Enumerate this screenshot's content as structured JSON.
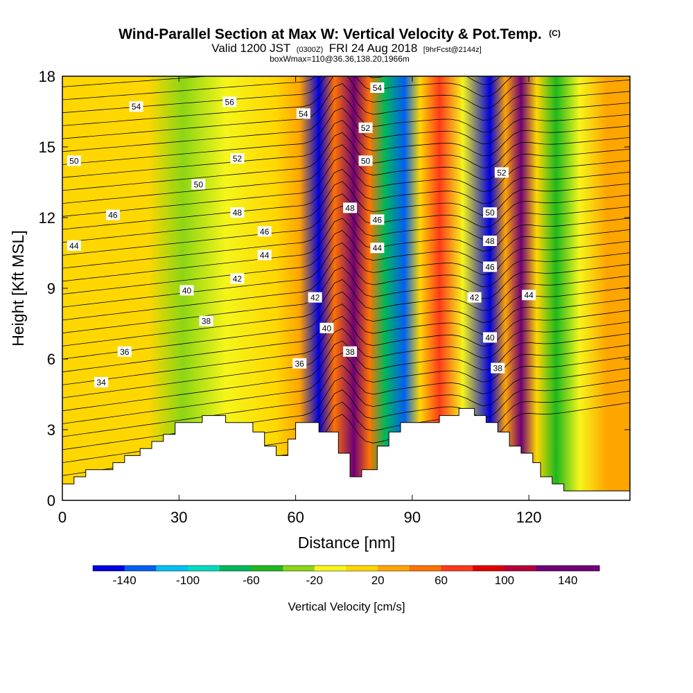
{
  "title": {
    "main": "Wind-Parallel Section at Max W: Vertical Velocity & Pot.Temp.",
    "copyright": "(C)",
    "valid_prefix": "Valid 1200 JST",
    "valid_utc": "(0300Z)",
    "valid_date": "FRI 24 Aug 2018",
    "forecast": "[9hrFcst@2144z]",
    "box": "boxWmax=110@36.36,138.20,1966m"
  },
  "chart_data": {
    "type": "heatmap",
    "xlabel": "Distance [nm]",
    "ylabel": "Height [Kft MSL]",
    "xlim": [
      0,
      146
    ],
    "ylim": [
      0,
      18
    ],
    "xticks": [
      0,
      30,
      60,
      90,
      120
    ],
    "yticks": [
      0,
      3,
      6,
      9,
      12,
      15,
      18
    ],
    "colorbar": {
      "label": "Vertical Velocity [cm/s]",
      "boundaries": [
        -160,
        -140,
        -120,
        -100,
        -80,
        -60,
        -40,
        -20,
        0,
        20,
        40,
        60,
        80,
        100,
        120,
        140,
        160
      ],
      "tick_labels": [
        -140,
        -100,
        -60,
        -20,
        20,
        60,
        100,
        140
      ],
      "colors": [
        "#0000e0",
        "#0060f0",
        "#00c0f5",
        "#00dcc0",
        "#00b85a",
        "#1eb81e",
        "#8cd614",
        "#f5f51a",
        "#ffd700",
        "#ffa500",
        "#ff7300",
        "#ff3a1a",
        "#e00000",
        "#b4003a",
        "#6e0078",
        "#6e0078"
      ]
    },
    "velocity_bands": [
      {
        "x": 0,
        "w": 0
      },
      {
        "x": 8,
        "w": 10
      },
      {
        "x": 22,
        "w": 15
      },
      {
        "x": 31,
        "w": -30
      },
      {
        "x": 42,
        "w": -15
      },
      {
        "x": 55,
        "w": 18
      },
      {
        "x": 61,
        "w": 25
      },
      {
        "x": 66,
        "w": -150
      },
      {
        "x": 70,
        "w": 40
      },
      {
        "x": 75,
        "w": 145
      },
      {
        "x": 79,
        "w": 55
      },
      {
        "x": 83,
        "w": -65
      },
      {
        "x": 88,
        "w": -130
      },
      {
        "x": 92,
        "w": 10
      },
      {
        "x": 97,
        "w": 60
      },
      {
        "x": 103,
        "w": -10
      },
      {
        "x": 110,
        "w": -145
      },
      {
        "x": 114,
        "w": 35
      },
      {
        "x": 118,
        "w": 120
      },
      {
        "x": 122,
        "w": 15
      },
      {
        "x": 127,
        "w": -45
      },
      {
        "x": 133,
        "w": -10
      },
      {
        "x": 140,
        "w": 25
      },
      {
        "x": 146,
        "w": 20
      }
    ],
    "terrain": [
      [
        0,
        0.7
      ],
      [
        3,
        0.7
      ],
      [
        3,
        1.0
      ],
      [
        6,
        1.0
      ],
      [
        6,
        1.3
      ],
      [
        13,
        1.3
      ],
      [
        13,
        1.6
      ],
      [
        16,
        1.6
      ],
      [
        16,
        1.9
      ],
      [
        20,
        1.9
      ],
      [
        20,
        2.2
      ],
      [
        23,
        2.2
      ],
      [
        23,
        2.5
      ],
      [
        26,
        2.5
      ],
      [
        26,
        2.8
      ],
      [
        29,
        2.8
      ],
      [
        29,
        3.3
      ],
      [
        36,
        3.3
      ],
      [
        36,
        3.6
      ],
      [
        42,
        3.6
      ],
      [
        42,
        3.3
      ],
      [
        49,
        3.3
      ],
      [
        49,
        2.9
      ],
      [
        52,
        2.9
      ],
      [
        52,
        2.3
      ],
      [
        55,
        2.3
      ],
      [
        55,
        1.9
      ],
      [
        58,
        1.9
      ],
      [
        58,
        2.6
      ],
      [
        60,
        2.6
      ],
      [
        60,
        3.3
      ],
      [
        66,
        3.3
      ],
      [
        66,
        2.9
      ],
      [
        71,
        2.9
      ],
      [
        71,
        2.0
      ],
      [
        74,
        2.0
      ],
      [
        74,
        1.0
      ],
      [
        77,
        1.0
      ],
      [
        77,
        1.3
      ],
      [
        81,
        1.3
      ],
      [
        81,
        2.3
      ],
      [
        84,
        2.3
      ],
      [
        84,
        2.9
      ],
      [
        87,
        2.9
      ],
      [
        87,
        3.3
      ],
      [
        97,
        3.3
      ],
      [
        97,
        3.6
      ],
      [
        102,
        3.6
      ],
      [
        102,
        3.9
      ],
      [
        106,
        3.9
      ],
      [
        106,
        3.6
      ],
      [
        109,
        3.6
      ],
      [
        109,
        3.3
      ],
      [
        112,
        3.3
      ],
      [
        112,
        2.9
      ],
      [
        115,
        2.9
      ],
      [
        115,
        2.3
      ],
      [
        118,
        2.3
      ],
      [
        118,
        2.0
      ],
      [
        121,
        2.0
      ],
      [
        121,
        1.6
      ],
      [
        123,
        1.6
      ],
      [
        123,
        1.0
      ],
      [
        126,
        1.0
      ],
      [
        126,
        0.7
      ],
      [
        129,
        0.7
      ],
      [
        129,
        0.4
      ],
      [
        146,
        0.4
      ]
    ],
    "contour_labels": [
      {
        "text": "54",
        "x": 19,
        "y": 16.7
      },
      {
        "text": "56",
        "x": 43,
        "y": 16.9
      },
      {
        "text": "50",
        "x": 3,
        "y": 14.4
      },
      {
        "text": "52",
        "x": 45,
        "y": 14.5
      },
      {
        "text": "50",
        "x": 35,
        "y": 13.4
      },
      {
        "text": "46",
        "x": 13,
        "y": 12.1
      },
      {
        "text": "48",
        "x": 45,
        "y": 12.2
      },
      {
        "text": "44",
        "x": 3,
        "y": 10.8
      },
      {
        "text": "46",
        "x": 52,
        "y": 11.4
      },
      {
        "text": "44",
        "x": 52,
        "y": 10.4
      },
      {
        "text": "42",
        "x": 45,
        "y": 9.4
      },
      {
        "text": "40",
        "x": 32,
        "y": 8.9
      },
      {
        "text": "38",
        "x": 37,
        "y": 7.6
      },
      {
        "text": "36",
        "x": 16,
        "y": 6.3
      },
      {
        "text": "34",
        "x": 10,
        "y": 5.0
      },
      {
        "text": "36",
        "x": 61,
        "y": 5.8
      },
      {
        "text": "54",
        "x": 62,
        "y": 16.4
      },
      {
        "text": "52",
        "x": 78,
        "y": 15.8
      },
      {
        "text": "50",
        "x": 78,
        "y": 14.4
      },
      {
        "text": "54",
        "x": 81,
        "y": 17.5
      },
      {
        "text": "48",
        "x": 74,
        "y": 12.4
      },
      {
        "text": "46",
        "x": 81,
        "y": 11.9
      },
      {
        "text": "44",
        "x": 81,
        "y": 10.7
      },
      {
        "text": "42",
        "x": 65,
        "y": 8.6
      },
      {
        "text": "40",
        "x": 68,
        "y": 7.3
      },
      {
        "text": "38",
        "x": 74,
        "y": 6.3
      },
      {
        "text": "52",
        "x": 113,
        "y": 13.9
      },
      {
        "text": "50",
        "x": 110,
        "y": 12.2
      },
      {
        "text": "48",
        "x": 110,
        "y": 11.0
      },
      {
        "text": "46",
        "x": 110,
        "y": 9.9
      },
      {
        "text": "42",
        "x": 106,
        "y": 8.6
      },
      {
        "text": "44",
        "x": 120,
        "y": 8.7
      },
      {
        "text": "40",
        "x": 110,
        "y": 6.9
      },
      {
        "text": "38",
        "x": 112,
        "y": 5.6
      }
    ]
  }
}
